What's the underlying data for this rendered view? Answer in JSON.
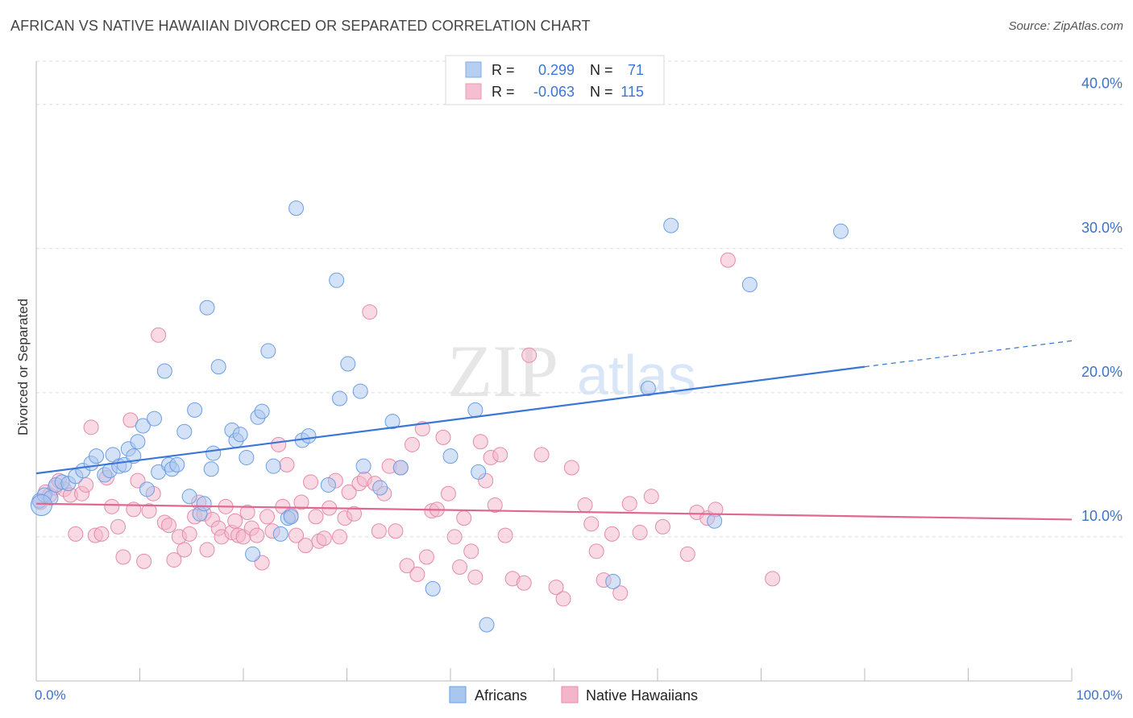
{
  "title": "AFRICAN VS NATIVE HAWAIIAN DIVORCED OR SEPARATED CORRELATION CHART",
  "source": "Source: ZipAtlas.com",
  "watermark": {
    "zip": "ZIP",
    "atlas": "atlas"
  },
  "colors": {
    "blue": "#3a76d6",
    "blue_fill": "#a9c6ef",
    "pink": "#e0678f",
    "pink_fill": "#f4b5ca",
    "grid": "#dddddd",
    "axis_text": "#3d72c6"
  },
  "legend_top": {
    "rows": [
      {
        "r_label": "R =",
        "r_value": "0.299",
        "n_label": "N =",
        "n_value": "71"
      },
      {
        "r_label": "R =",
        "r_value": "-0.063",
        "n_label": "N =",
        "n_value": "115"
      }
    ]
  },
  "legend_bottom": {
    "items": [
      "Africans",
      "Native Hawaiians"
    ]
  },
  "chart_data": {
    "type": "scatter",
    "ylabel": "Divorced or Separated",
    "xlim": [
      0,
      100
    ],
    "ylim": [
      0,
      43
    ],
    "x_tick_labels": [
      "0.0%",
      "100.0%"
    ],
    "y_ticks": [
      10,
      20,
      30,
      40
    ],
    "y_tick_labels": [
      "10.0%",
      "20.0%",
      "30.0%",
      "40.0%"
    ],
    "series": [
      {
        "name": "Africans",
        "color": "#3a76d6",
        "trend": {
          "x0": 0,
          "y0": 14.4,
          "x1": 80,
          "y1": 21.8,
          "dash_to": 100,
          "dash_y": 23.6
        },
        "points": [
          [
            0.3,
            12.5
          ],
          [
            0.8,
            12.9
          ],
          [
            1.4,
            12.7
          ],
          [
            1.9,
            13.6
          ],
          [
            2.5,
            13.8
          ],
          [
            3.1,
            13.7
          ],
          [
            3.8,
            14.2
          ],
          [
            4.5,
            14.6
          ],
          [
            5.3,
            15.1
          ],
          [
            5.8,
            15.6
          ],
          [
            6.6,
            14.3
          ],
          [
            7.1,
            14.6
          ],
          [
            7.4,
            15.7
          ],
          [
            8.0,
            14.9
          ],
          [
            8.5,
            15.0
          ],
          [
            8.9,
            16.1
          ],
          [
            9.4,
            15.6
          ],
          [
            9.8,
            16.6
          ],
          [
            10.3,
            17.7
          ],
          [
            10.7,
            13.3
          ],
          [
            11.4,
            18.2
          ],
          [
            11.8,
            14.5
          ],
          [
            12.4,
            21.5
          ],
          [
            12.8,
            15.0
          ],
          [
            13.1,
            14.7
          ],
          [
            13.6,
            15.0
          ],
          [
            14.3,
            17.3
          ],
          [
            14.8,
            12.8
          ],
          [
            15.3,
            18.8
          ],
          [
            15.8,
            11.6
          ],
          [
            16.2,
            12.3
          ],
          [
            16.5,
            25.9
          ],
          [
            16.9,
            14.7
          ],
          [
            17.1,
            15.8
          ],
          [
            17.6,
            21.8
          ],
          [
            18.9,
            17.4
          ],
          [
            19.3,
            16.7
          ],
          [
            19.7,
            17.1
          ],
          [
            20.3,
            15.5
          ],
          [
            20.9,
            8.8
          ],
          [
            21.4,
            18.3
          ],
          [
            21.8,
            18.7
          ],
          [
            22.4,
            22.9
          ],
          [
            22.9,
            14.9
          ],
          [
            23.6,
            10.2
          ],
          [
            24.3,
            11.3
          ],
          [
            24.6,
            11.4
          ],
          [
            25.1,
            32.8
          ],
          [
            25.7,
            16.7
          ],
          [
            26.3,
            17.0
          ],
          [
            28.2,
            13.6
          ],
          [
            29.0,
            27.8
          ],
          [
            29.3,
            19.6
          ],
          [
            30.1,
            22.0
          ],
          [
            31.3,
            20.1
          ],
          [
            31.6,
            14.9
          ],
          [
            33.2,
            13.4
          ],
          [
            34.4,
            18.0
          ],
          [
            35.2,
            14.8
          ],
          [
            38.3,
            6.4
          ],
          [
            40.0,
            15.6
          ],
          [
            42.4,
            18.8
          ],
          [
            42.7,
            14.5
          ],
          [
            43.5,
            3.9
          ],
          [
            55.7,
            6.9
          ],
          [
            59.1,
            20.3
          ],
          [
            61.3,
            31.6
          ],
          [
            65.5,
            11.1
          ],
          [
            68.9,
            27.5
          ],
          [
            77.7,
            31.2
          ],
          [
            0.5,
            12.2
          ]
        ]
      },
      {
        "name": "Native Hawaiians",
        "color": "#e0678f",
        "trend": {
          "x0": 0,
          "y0": 12.3,
          "x1": 100,
          "y1": 11.2
        },
        "points": [
          [
            0.4,
            12.4
          ],
          [
            0.9,
            13.1
          ],
          [
            1.3,
            12.9
          ],
          [
            1.8,
            13.4
          ],
          [
            2.2,
            13.9
          ],
          [
            2.7,
            13.3
          ],
          [
            3.3,
            12.9
          ],
          [
            3.8,
            10.2
          ],
          [
            4.4,
            13.0
          ],
          [
            4.8,
            13.6
          ],
          [
            5.3,
            17.6
          ],
          [
            5.7,
            10.1
          ],
          [
            6.3,
            10.2
          ],
          [
            6.8,
            14.1
          ],
          [
            7.3,
            12.1
          ],
          [
            7.9,
            10.7
          ],
          [
            8.4,
            8.6
          ],
          [
            9.1,
            18.1
          ],
          [
            9.4,
            11.9
          ],
          [
            9.8,
            13.9
          ],
          [
            10.4,
            8.3
          ],
          [
            10.9,
            11.8
          ],
          [
            11.3,
            13.0
          ],
          [
            11.8,
            24.0
          ],
          [
            12.4,
            11.0
          ],
          [
            12.8,
            10.8
          ],
          [
            13.3,
            8.4
          ],
          [
            13.8,
            10.0
          ],
          [
            14.3,
            9.1
          ],
          [
            14.8,
            10.2
          ],
          [
            15.3,
            11.4
          ],
          [
            15.7,
            12.4
          ],
          [
            16.2,
            11.6
          ],
          [
            16.5,
            9.1
          ],
          [
            17.0,
            11.2
          ],
          [
            17.6,
            10.6
          ],
          [
            17.9,
            10.0
          ],
          [
            18.3,
            12.1
          ],
          [
            18.9,
            10.3
          ],
          [
            19.2,
            11.1
          ],
          [
            19.5,
            10.1
          ],
          [
            20.0,
            10.0
          ],
          [
            20.4,
            11.7
          ],
          [
            20.8,
            10.6
          ],
          [
            21.3,
            10.1
          ],
          [
            21.8,
            8.2
          ],
          [
            22.3,
            11.4
          ],
          [
            22.8,
            10.4
          ],
          [
            23.4,
            16.4
          ],
          [
            23.8,
            12.1
          ],
          [
            24.2,
            15.0
          ],
          [
            24.6,
            11.5
          ],
          [
            25.1,
            10.1
          ],
          [
            25.6,
            12.4
          ],
          [
            26.0,
            9.4
          ],
          [
            26.5,
            13.8
          ],
          [
            27.0,
            11.4
          ],
          [
            27.3,
            9.7
          ],
          [
            27.8,
            9.9
          ],
          [
            28.3,
            12.0
          ],
          [
            28.9,
            13.9
          ],
          [
            29.3,
            10.0
          ],
          [
            29.8,
            11.3
          ],
          [
            30.2,
            13.1
          ],
          [
            30.7,
            11.6
          ],
          [
            31.2,
            13.7
          ],
          [
            31.7,
            14.0
          ],
          [
            32.2,
            25.6
          ],
          [
            32.7,
            13.7
          ],
          [
            33.1,
            10.4
          ],
          [
            33.6,
            13.0
          ],
          [
            34.1,
            14.9
          ],
          [
            34.7,
            10.4
          ],
          [
            35.2,
            14.8
          ],
          [
            35.8,
            8.0
          ],
          [
            36.3,
            16.4
          ],
          [
            36.8,
            7.4
          ],
          [
            37.3,
            17.5
          ],
          [
            37.7,
            8.6
          ],
          [
            38.2,
            11.8
          ],
          [
            38.7,
            11.9
          ],
          [
            39.3,
            16.9
          ],
          [
            39.8,
            13.0
          ],
          [
            40.4,
            10.0
          ],
          [
            40.9,
            7.9
          ],
          [
            41.3,
            11.3
          ],
          [
            42.0,
            9.0
          ],
          [
            42.4,
            7.2
          ],
          [
            42.9,
            16.6
          ],
          [
            43.4,
            13.9
          ],
          [
            43.9,
            15.5
          ],
          [
            44.3,
            12.2
          ],
          [
            44.8,
            15.7
          ],
          [
            45.3,
            10.1
          ],
          [
            46.0,
            7.1
          ],
          [
            47.1,
            6.8
          ],
          [
            47.6,
            22.6
          ],
          [
            48.8,
            15.7
          ],
          [
            50.2,
            6.5
          ],
          [
            50.9,
            5.7
          ],
          [
            51.7,
            14.8
          ],
          [
            53.0,
            12.2
          ],
          [
            53.6,
            10.9
          ],
          [
            54.1,
            9.0
          ],
          [
            54.8,
            7.0
          ],
          [
            55.6,
            10.2
          ],
          [
            56.4,
            6.1
          ],
          [
            57.3,
            12.3
          ],
          [
            58.3,
            10.3
          ],
          [
            59.4,
            12.8
          ],
          [
            60.5,
            10.7
          ],
          [
            62.9,
            8.8
          ],
          [
            63.8,
            11.7
          ],
          [
            64.8,
            11.3
          ],
          [
            65.6,
            11.9
          ],
          [
            66.8,
            29.2
          ],
          [
            71.1,
            7.1
          ]
        ]
      }
    ]
  }
}
